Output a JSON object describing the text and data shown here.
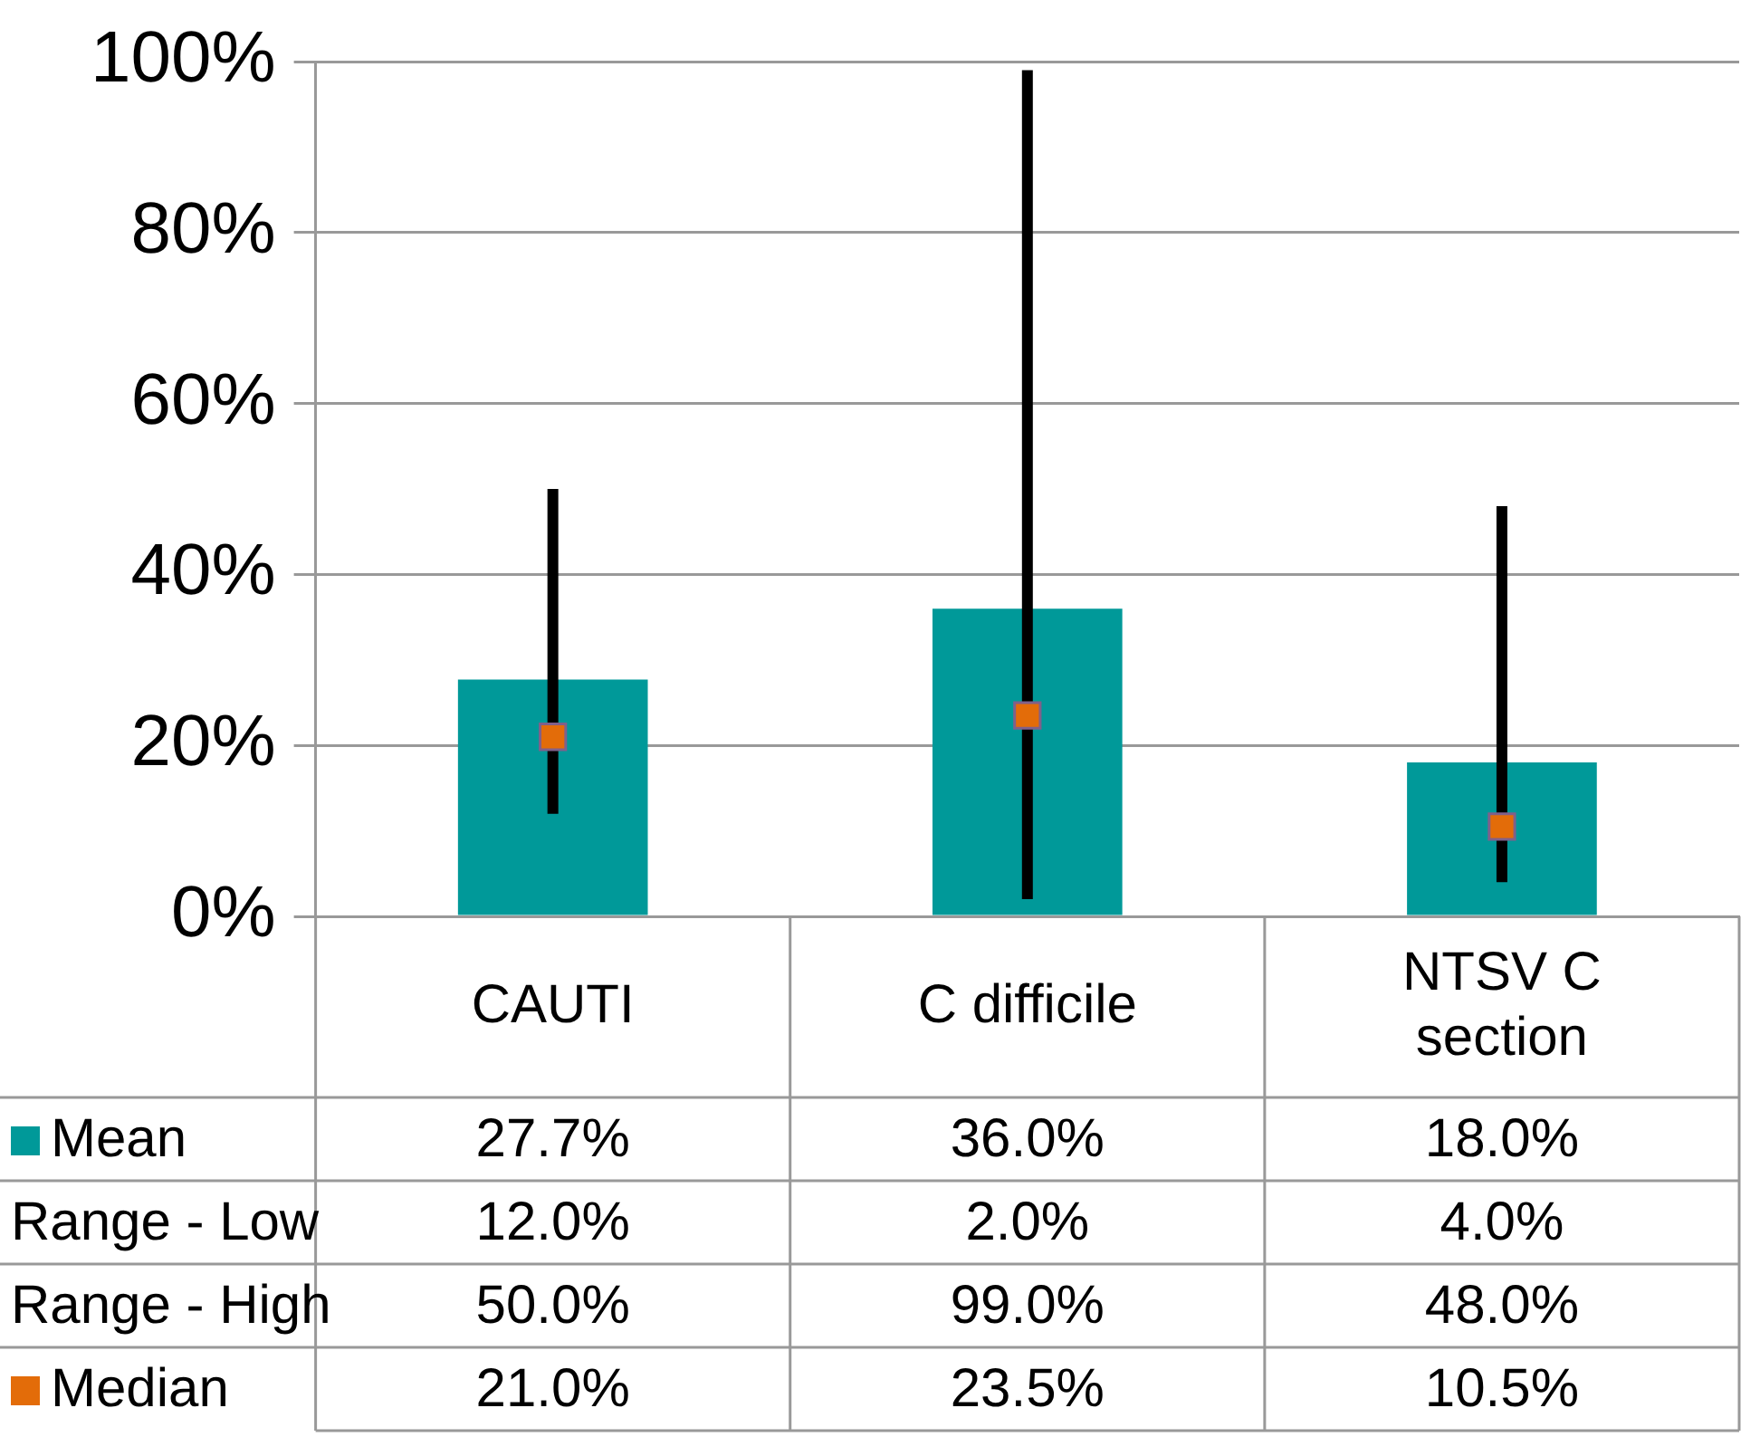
{
  "chart_data": {
    "type": "bar",
    "categories": [
      "CAUTI",
      "C difficile",
      "NTSV C section"
    ],
    "series": [
      {
        "name": "Mean",
        "color": "#009999",
        "values": [
          27.7,
          36.0,
          18.0
        ],
        "value_labels": [
          "27.7%",
          "36.0%",
          "18.0%"
        ],
        "errors": [
          [
            12,
            50
          ],
          [
            2,
            99
          ],
          [
            4,
            48
          ]
        ]
      },
      {
        "name": "Median",
        "type": "scatter",
        "color": "#e36c09",
        "x": [
          "CAUTI",
          "C difficile",
          "NTSV C section"
        ],
        "values": [
          21.0,
          23.5,
          10.5
        ],
        "value_labels": [
          "21.0%",
          "23.5%",
          "10.5%"
        ]
      }
    ],
    "annotations": [
      "Range - Low",
      "12.0%",
      "2.0%",
      "4.0%",
      "Range - High",
      "50.0%",
      "99.0%",
      "48.0%"
    ],
    "ylim": [
      0,
      100
    ],
    "yticks": [
      {
        "value": 0,
        "label": "0%"
      },
      {
        "value": 20,
        "label": "20%"
      },
      {
        "value": 40,
        "label": "40%"
      },
      {
        "value": 60,
        "label": "60%"
      },
      {
        "value": 80,
        "label": "80%"
      },
      {
        "value": 100,
        "label": "100%"
      }
    ],
    "grid": "y",
    "legend": "left",
    "marker": "square"
  }
}
